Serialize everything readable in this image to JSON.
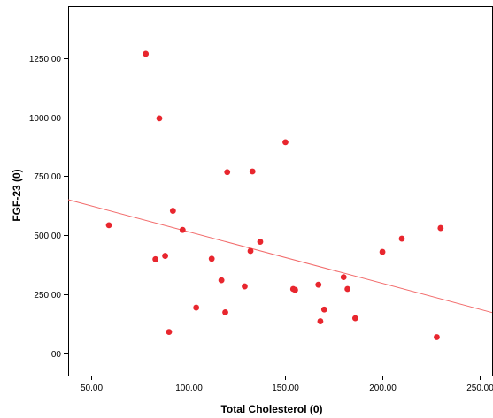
{
  "chart_data": {
    "type": "scatter",
    "xlabel": "Total Cholesterol (0)",
    "ylabel": "FGF-23 (0)",
    "xlim": [
      38,
      257
    ],
    "ylim": [
      -95,
      1470
    ],
    "x_ticks": [
      50,
      100,
      150,
      200,
      250
    ],
    "y_ticks": [
      0,
      250,
      500,
      750,
      1000,
      1250
    ],
    "x_tick_labels": [
      "50.00",
      "100.00",
      "150.00",
      "200.00",
      "250.00"
    ],
    "y_tick_labels": [
      ".00",
      "250.00",
      "500.00",
      "750.00",
      "1000.00",
      "1250.00"
    ],
    "grid": false,
    "point_color": "#e8262e",
    "fit_line_color": "#f26b6b",
    "fit_line": {
      "x": [
        38,
        257
      ],
      "y": [
        650,
        172
      ]
    },
    "points": [
      {
        "x": 59,
        "y": 542
      },
      {
        "x": 78,
        "y": 1268
      },
      {
        "x": 83,
        "y": 398
      },
      {
        "x": 85,
        "y": 995
      },
      {
        "x": 88,
        "y": 412
      },
      {
        "x": 90,
        "y": 90
      },
      {
        "x": 92,
        "y": 603
      },
      {
        "x": 97,
        "y": 522
      },
      {
        "x": 104,
        "y": 193
      },
      {
        "x": 112,
        "y": 400
      },
      {
        "x": 117,
        "y": 309
      },
      {
        "x": 119,
        "y": 173
      },
      {
        "x": 120,
        "y": 767
      },
      {
        "x": 129,
        "y": 283
      },
      {
        "x": 132,
        "y": 433
      },
      {
        "x": 133,
        "y": 770
      },
      {
        "x": 137,
        "y": 472
      },
      {
        "x": 150,
        "y": 894
      },
      {
        "x": 154,
        "y": 272
      },
      {
        "x": 155,
        "y": 268
      },
      {
        "x": 167,
        "y": 290
      },
      {
        "x": 168,
        "y": 135
      },
      {
        "x": 170,
        "y": 185
      },
      {
        "x": 180,
        "y": 322
      },
      {
        "x": 182,
        "y": 272
      },
      {
        "x": 186,
        "y": 148
      },
      {
        "x": 200,
        "y": 429
      },
      {
        "x": 210,
        "y": 485
      },
      {
        "x": 228,
        "y": 68
      },
      {
        "x": 230,
        "y": 530
      }
    ]
  }
}
